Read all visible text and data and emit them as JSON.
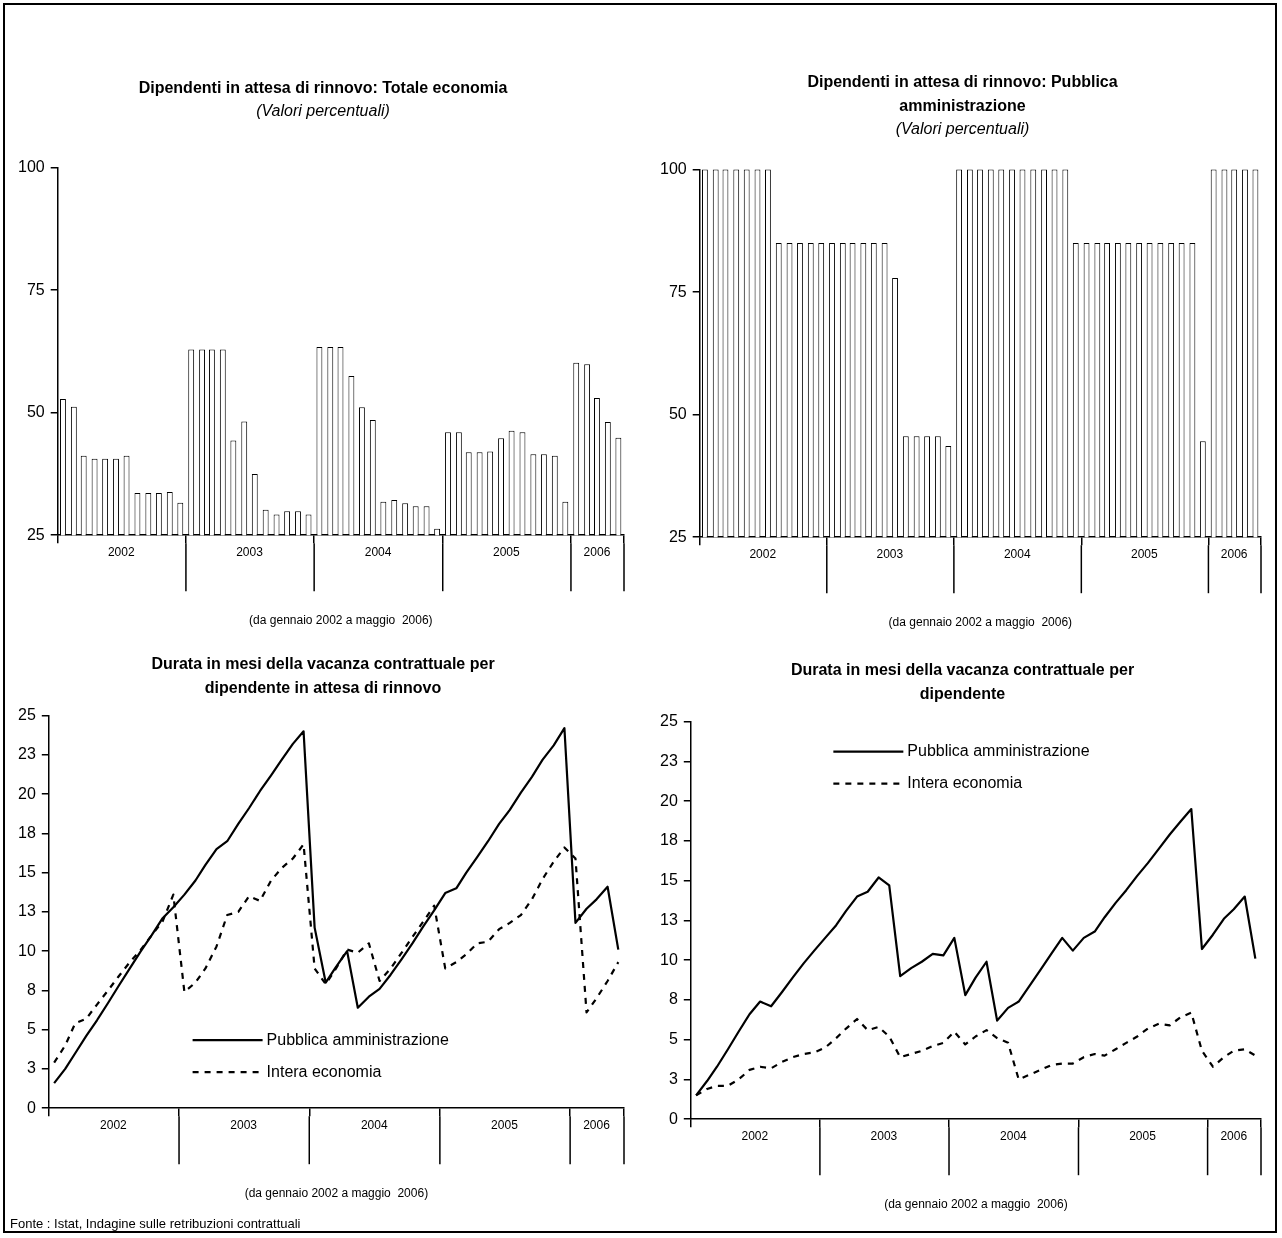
{
  "chart_data": [
    {
      "type": "bar",
      "title": "Dipendenti in attesa di rinnovo: Totale economia",
      "subtitle": "(Valori percentuali)",
      "xlabel": "(da gennaio 2002 a maggio  2006)",
      "x": [
        "2002-01-16",
        "2002-02-16",
        "2002-03-16",
        "2002-04-16",
        "2002-05-16",
        "2002-06-16",
        "2002-07-16",
        "2002-08-16",
        "2002-09-16",
        "2002-10-16",
        "2002-11-16",
        "2002-12-16",
        "2003-01-16",
        "2003-02-16",
        "2003-03-16",
        "2003-04-16",
        "2003-05-16",
        "2003-06-16",
        "2003-07-16",
        "2003-08-16",
        "2003-09-16",
        "2003-10-16",
        "2003-11-16",
        "2003-12-16",
        "2004-01-16",
        "2004-02-16",
        "2004-03-16",
        "2004-04-16",
        "2004-05-16",
        "2004-06-16",
        "2004-07-16",
        "2004-08-16",
        "2004-09-16",
        "2004-10-16",
        "2004-11-16",
        "2004-12-16",
        "2005-01-16",
        "2005-02-16",
        "2005-03-16",
        "2005-04-16",
        "2005-05-16",
        "2005-06-16",
        "2005-07-16",
        "2005-08-16",
        "2005-09-16",
        "2005-10-16",
        "2005-11-16",
        "2005-12-16",
        "2006-01-16",
        "2006-02-16",
        "2006-03-16",
        "2006-04-16",
        "2006-05-16"
      ],
      "values": [
        52.8,
        51.2,
        41.2,
        40.6,
        40.6,
        40.6,
        41.2,
        33.6,
        33.6,
        33.6,
        33.8,
        31.6,
        62.9,
        62.9,
        62.9,
        62.9,
        44.3,
        48.2,
        37.5,
        30.2,
        29.2,
        29.9,
        29.9,
        29.2,
        63.4,
        63.4,
        63.4,
        57.5,
        51.1,
        48.5,
        31.8,
        32.2,
        31.5,
        30.9,
        30.9,
        26.3,
        46,
        46,
        41.9,
        41.9,
        42.1,
        44.8,
        46.3,
        46,
        41.5,
        41.5,
        41.2,
        31.8,
        60.2,
        59.9,
        53,
        48.1,
        44.9
      ],
      "color": "#ffffff",
      "xlim": [
        "2002-01",
        "2006-06"
      ],
      "xticks": [
        {
          "value": "2002-01",
          "label": null
        },
        {
          "value": "2002-07",
          "label": "2002"
        },
        {
          "value": "2003-01",
          "label": null
        },
        {
          "value": "2003-07",
          "label": "2003"
        },
        {
          "value": "2004-01",
          "label": null
        },
        {
          "value": "2004-07",
          "label": "2004"
        },
        {
          "value": "2005-01",
          "label": null
        },
        {
          "value": "2005-07",
          "label": "2005"
        },
        {
          "value": "2006-01",
          "label": null
        },
        {
          "value": "2006-03-16",
          "label": "2006"
        },
        {
          "value": "2006-06",
          "label": null
        }
      ],
      "ylim": [
        25,
        100
      ],
      "yticks": [
        25,
        50,
        75,
        100
      ]
    },
    {
      "type": "bar",
      "title": "Dipendenti in attesa di rinnovo: Pubblica amministrazione",
      "subtitle": "(Valori percentuali)",
      "xlabel": "(da gennaio 2002 a maggio  2006)",
      "x": [
        "2002-01-16",
        "2002-02-16",
        "2002-03-16",
        "2002-04-16",
        "2002-05-16",
        "2002-06-16",
        "2002-07-16",
        "2002-08-16",
        "2002-09-16",
        "2002-10-16",
        "2002-11-16",
        "2002-12-16",
        "2003-01-16",
        "2003-02-16",
        "2003-03-16",
        "2003-04-16",
        "2003-05-16",
        "2003-06-16",
        "2003-07-16",
        "2003-08-16",
        "2003-09-16",
        "2003-10-16",
        "2003-11-16",
        "2003-12-16",
        "2004-01-16",
        "2004-02-16",
        "2004-03-16",
        "2004-04-16",
        "2004-05-16",
        "2004-06-16",
        "2004-07-16",
        "2004-08-16",
        "2004-09-16",
        "2004-10-16",
        "2004-11-16",
        "2004-12-16",
        "2005-01-16",
        "2005-02-16",
        "2005-03-16",
        "2005-04-16",
        "2005-05-16",
        "2005-06-16",
        "2005-07-16",
        "2005-08-16",
        "2005-09-16",
        "2005-10-16",
        "2005-11-16",
        "2005-12-16",
        "2006-01-16",
        "2006-02-16",
        "2006-03-16",
        "2006-04-16",
        "2006-05-16"
      ],
      "values": [
        100,
        100,
        100,
        100,
        100,
        100,
        100,
        85,
        85,
        85,
        85,
        85,
        85,
        85,
        85,
        85,
        85,
        85,
        77.9,
        45.6,
        45.6,
        45.6,
        45.6,
        43.6,
        100,
        100,
        100,
        100,
        100,
        100,
        100,
        100,
        100,
        100,
        100,
        85,
        85,
        85,
        85,
        85,
        85,
        85,
        85,
        85,
        85,
        85,
        85,
        44.6,
        100,
        100,
        100,
        100,
        100
      ],
      "color": "#ffffff",
      "xlim": [
        "2002-01",
        "2006-06"
      ],
      "xticks": [
        {
          "value": "2002-01",
          "label": null
        },
        {
          "value": "2002-07",
          "label": "2002"
        },
        {
          "value": "2003-01",
          "label": null
        },
        {
          "value": "2003-07",
          "label": "2003"
        },
        {
          "value": "2004-01",
          "label": null
        },
        {
          "value": "2004-07",
          "label": "2004"
        },
        {
          "value": "2005-01",
          "label": null
        },
        {
          "value": "2005-07",
          "label": "2005"
        },
        {
          "value": "2006-01",
          "label": null
        },
        {
          "value": "2006-03-16",
          "label": "2006"
        },
        {
          "value": "2006-06",
          "label": null
        }
      ],
      "ylim": [
        25,
        100
      ],
      "yticks": [
        25,
        50,
        75,
        100
      ]
    },
    {
      "type": "line",
      "title": "Durata in mesi della vacanza contrattuale per dipendente in attesa di rinnovo",
      "xlabel": "(da gennaio 2002 a maggio  2006)",
      "x": [
        "2002-01-16",
        "2002-02-16",
        "2002-03-16",
        "2002-04-16",
        "2002-05-16",
        "2002-06-16",
        "2002-07-16",
        "2002-08-16",
        "2002-09-16",
        "2002-10-16",
        "2002-11-16",
        "2002-12-16",
        "2003-01-16",
        "2003-02-16",
        "2003-03-16",
        "2003-04-16",
        "2003-05-16",
        "2003-06-16",
        "2003-07-16",
        "2003-08-16",
        "2003-09-16",
        "2003-10-16",
        "2003-11-16",
        "2003-12-16",
        "2004-01-16",
        "2004-02-16",
        "2004-03-16",
        "2004-04-16",
        "2004-05-16",
        "2004-06-16",
        "2004-07-16",
        "2004-08-16",
        "2004-09-16",
        "2004-10-16",
        "2004-11-16",
        "2004-12-16",
        "2005-01-16",
        "2005-02-16",
        "2005-03-16",
        "2005-04-16",
        "2005-05-16",
        "2005-06-16",
        "2005-07-16",
        "2005-08-16",
        "2005-09-16",
        "2005-10-16",
        "2005-11-16",
        "2005-12-16",
        "2006-01-16",
        "2006-02-16",
        "2006-03-16",
        "2006-04-16",
        "2006-05-16"
      ],
      "series": [
        {
          "name": "Pubblica amministrazione",
          "color": "#000000",
          "line_style": "solid",
          "values": [
            1.6,
            2.5,
            3.5,
            4.6,
            5.6,
            6.7,
            7.8,
            8.9,
            10.0,
            11.0,
            12.1,
            12.8,
            13.6,
            14.5,
            15.5,
            16.5,
            17.0,
            18.1,
            19.1,
            20.2,
            21.2,
            22.2,
            23.2,
            24.0,
            11.5,
            8.0,
            9.0,
            10.0,
            6.4,
            7.1,
            7.6,
            8.5,
            9.5,
            10.5,
            11.6,
            12.6,
            13.7,
            14.0,
            15.0,
            16.0,
            17.0,
            18.1,
            19.0,
            20.1,
            21.1,
            22.2,
            23.1,
            24.2,
            11.8,
            12.7,
            13.3,
            14.1,
            10.1
          ]
        },
        {
          "name": "Intera economia",
          "color": "#000000",
          "line_style": "dashed",
          "values": [
            2.9,
            4.0,
            5.4,
            5.7,
            6.6,
            7.5,
            8.4,
            9.3,
            10.1,
            11.0,
            11.9,
            13.6,
            7.4,
            8.0,
            8.9,
            10.3,
            12.3,
            12.5,
            13.5,
            13.2,
            14.5,
            15.3,
            15.9,
            16.8,
            8.9,
            7.9,
            8.9,
            10.1,
            9.9,
            10.5,
            8.1,
            8.9,
            9.9,
            10.9,
            11.9,
            12.9,
            8.9,
            9.3,
            9.8,
            10.5,
            10.6,
            11.4,
            11.8,
            12.3,
            13.3,
            14.6,
            15.7,
            16.6,
            15.9,
            6.1,
            7.0,
            8.1,
            9.3
          ]
        }
      ],
      "xlim": [
        "2002-01",
        "2006-06"
      ],
      "xticks": [
        {
          "value": "2002-01",
          "label": null
        },
        {
          "value": "2002-07",
          "label": "2002"
        },
        {
          "value": "2003-01",
          "label": null
        },
        {
          "value": "2003-07",
          "label": "2003"
        },
        {
          "value": "2004-01",
          "label": null
        },
        {
          "value": "2004-07",
          "label": "2004"
        },
        {
          "value": "2005-01",
          "label": null
        },
        {
          "value": "2005-07",
          "label": "2005"
        },
        {
          "value": "2006-01",
          "label": null
        },
        {
          "value": "2006-03-16",
          "label": "2006"
        },
        {
          "value": "2006-06",
          "label": null
        }
      ],
      "ylim": [
        0,
        25
      ],
      "yticks": [
        0,
        {
          "value": 2.5,
          "label": "3"
        },
        5,
        {
          "value": 7.5,
          "label": "8"
        },
        10,
        {
          "value": 12.5,
          "label": "13"
        },
        15,
        {
          "value": 17.5,
          "label": "18"
        },
        20,
        {
          "value": 22.5,
          "label": "23"
        },
        25
      ],
      "legend": "bottom",
      "marker": "none",
      "annotations": [
        "Fonte : Istat, Indagine sulle retribuzioni contrattuali"
      ]
    },
    {
      "type": "line",
      "title": "Durata in mesi della vacanza contrattuale per dipendente",
      "xlabel": "(da gennaio 2002 a maggio  2006)",
      "x": [
        "2002-01-16",
        "2002-02-16",
        "2002-03-16",
        "2002-04-16",
        "2002-05-16",
        "2002-06-16",
        "2002-07-16",
        "2002-08-16",
        "2002-09-16",
        "2002-10-16",
        "2002-11-16",
        "2002-12-16",
        "2003-01-16",
        "2003-02-16",
        "2003-03-16",
        "2003-04-16",
        "2003-05-16",
        "2003-06-16",
        "2003-07-16",
        "2003-08-16",
        "2003-09-16",
        "2003-10-16",
        "2003-11-16",
        "2003-12-16",
        "2004-01-16",
        "2004-02-16",
        "2004-03-16",
        "2004-04-16",
        "2004-05-16",
        "2004-06-16",
        "2004-07-16",
        "2004-08-16",
        "2004-09-16",
        "2004-10-16",
        "2004-11-16",
        "2004-12-16",
        "2005-01-16",
        "2005-02-16",
        "2005-03-16",
        "2005-04-16",
        "2005-05-16",
        "2005-06-16",
        "2005-07-16",
        "2005-08-16",
        "2005-09-16",
        "2005-10-16",
        "2005-11-16",
        "2005-12-16",
        "2006-01-16",
        "2006-02-16",
        "2006-03-16",
        "2006-04-16",
        "2006-05-16"
      ],
      "series": [
        {
          "name": "Pubblica amministrazione",
          "color": "#000000",
          "line_style": "solid",
          "values": [
            1.5,
            2.4,
            3.3,
            4.4,
            5.5,
            6.6,
            7.4,
            7.1,
            8.0,
            8.9,
            9.8,
            10.6,
            11.4,
            12.2,
            13.1,
            14.0,
            14.3,
            15.2,
            14.7,
            9.0,
            9.5,
            9.9,
            10.4,
            10.3,
            11.4,
            7.8,
            8.9,
            9.9,
            6.2,
            7.0,
            7.4,
            8.4,
            9.4,
            10.4,
            11.4,
            10.6,
            11.4,
            11.8,
            12.7,
            13.6,
            14.4,
            15.3,
            16.1,
            17.0,
            17.9,
            18.7,
            19.5,
            10.7,
            11.6,
            12.6,
            13.2,
            14.0,
            10.1
          ]
        },
        {
          "name": "Intera economia",
          "color": "#000000",
          "line_style": "dashed",
          "values": [
            1.5,
            1.9,
            2.1,
            2.1,
            2.5,
            3.1,
            3.3,
            3.2,
            3.6,
            3.9,
            4.1,
            4.2,
            4.5,
            5.1,
            5.7,
            6.3,
            5.6,
            5.8,
            5.2,
            3.9,
            4.1,
            4.3,
            4.6,
            4.8,
            5.5,
            4.7,
            5.2,
            5.6,
            5.1,
            4.8,
            2.5,
            2.8,
            3.1,
            3.4,
            3.5,
            3.5,
            3.9,
            4.1,
            4.0,
            4.4,
            4.8,
            5.2,
            5.7,
            6.0,
            5.9,
            6.4,
            6.7,
            4.3,
            3.3,
            3.9,
            4.3,
            4.4,
            4.0
          ]
        }
      ],
      "xlim": [
        "2002-01",
        "2006-06"
      ],
      "xticks": [
        {
          "value": "2002-01",
          "label": null
        },
        {
          "value": "2002-07",
          "label": "2002"
        },
        {
          "value": "2003-01",
          "label": null
        },
        {
          "value": "2003-07",
          "label": "2003"
        },
        {
          "value": "2004-01",
          "label": null
        },
        {
          "value": "2004-07",
          "label": "2004"
        },
        {
          "value": "2005-01",
          "label": null
        },
        {
          "value": "2005-07",
          "label": "2005"
        },
        {
          "value": "2006-01",
          "label": null
        },
        {
          "value": "2006-03-16",
          "label": "2006"
        },
        {
          "value": "2006-06",
          "label": null
        }
      ],
      "ylim": [
        0,
        25
      ],
      "yticks": [
        0,
        {
          "value": 2.5,
          "label": "3"
        },
        5,
        {
          "value": 7.5,
          "label": "8"
        },
        10,
        {
          "value": 12.5,
          "label": "13"
        },
        15,
        {
          "value": 17.5,
          "label": "18"
        },
        20,
        {
          "value": 22.5,
          "label": "23"
        },
        25
      ],
      "legend": "top",
      "marker": "none"
    }
  ]
}
